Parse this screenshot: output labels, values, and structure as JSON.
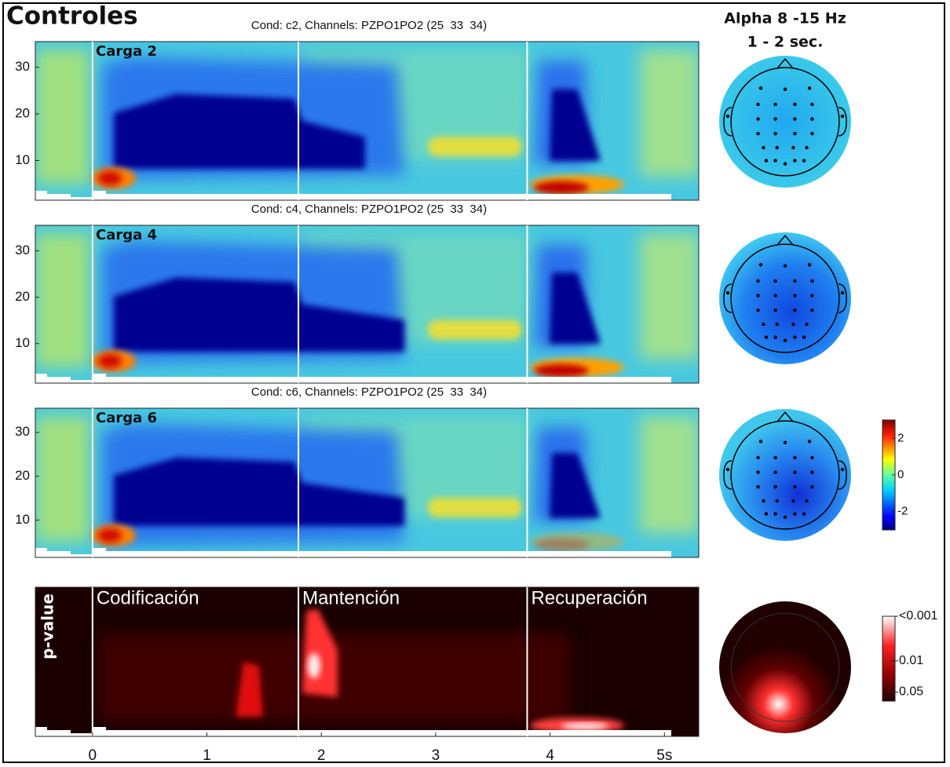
{
  "title": "Controles",
  "topomap_title": [
    "Alpha 8 -15 Hz",
    "1 - 2 sec."
  ],
  "chart_data": {
    "type": "heatmap",
    "xlim": [
      -0.5,
      5.3
    ],
    "ylim": [
      1.5,
      35.5
    ],
    "xticks": [
      0,
      1,
      2,
      3,
      4,
      {
        "value": 5,
        "label": "5s"
      }
    ],
    "yticks": [
      10,
      20,
      30
    ],
    "event_times": [
      0,
      1.8,
      3.8
    ],
    "panels": [
      {
        "title": "Cond: c2, Channels: PZPO1PO2 (25  33  34)",
        "label": "Carga 2"
      },
      {
        "title": "Cond: c4, Channels: PZPO1PO2 (25  33  34)",
        "label": "Carga 4"
      },
      {
        "title": "Cond: c6, Channels: PZPO1PO2 (25  33  34)",
        "label": "Carga 6"
      }
    ],
    "pvalue_panel": {
      "label": "p-value",
      "phases": [
        "Codificación",
        "Mantención",
        "Recuperación"
      ]
    },
    "colorbar": {
      "clim": [
        -3,
        3
      ],
      "ticks": [
        -2,
        0,
        2
      ]
    },
    "pvalue_colorbar": {
      "log": true,
      "clim": [
        0.001,
        0.08
      ],
      "ticks": [
        {
          "value": 0.001,
          "label": "<0.001"
        },
        0.01,
        0.05
      ]
    }
  }
}
